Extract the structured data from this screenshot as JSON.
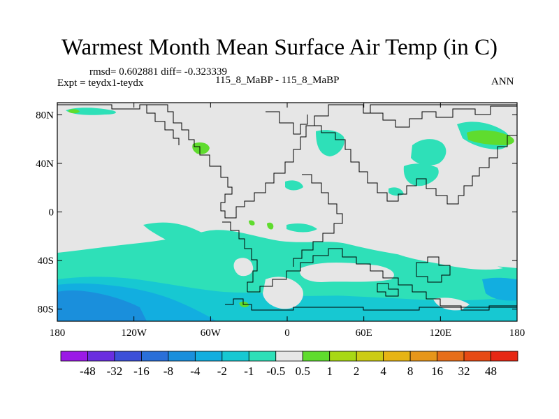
{
  "title": "Warmest Month Mean Surface Air Temp (in C)",
  "stats": "rmsd= 0.602881 diff= -0.323339",
  "expt": "Expt = teydx1-teydx",
  "subtitle": "115_8_MaBP - 115_8_MaBP",
  "period": "ANN",
  "chart_data": {
    "type": "heatmap",
    "map_projection": "cylindrical-equidistant",
    "lon_range": [
      -180,
      180
    ],
    "lat_range": [
      -90,
      90
    ],
    "x_ticks": [
      {
        "lon": -180,
        "label": "180"
      },
      {
        "lon": -120,
        "label": "120W"
      },
      {
        "lon": -60,
        "label": "60W"
      },
      {
        "lon": 0,
        "label": "0"
      },
      {
        "lon": 60,
        "label": "60E"
      },
      {
        "lon": 120,
        "label": "120E"
      },
      {
        "lon": 180,
        "label": "180"
      }
    ],
    "y_ticks": [
      {
        "lat": 80,
        "label": "80N"
      },
      {
        "lat": 40,
        "label": "40N"
      },
      {
        "lat": 0,
        "label": "0"
      },
      {
        "lat": -40,
        "label": "40S"
      },
      {
        "lat": -80,
        "label": "80S"
      }
    ],
    "colorbar": {
      "labels": [
        "-48",
        "-32",
        "-16",
        "-8",
        "-4",
        "-2",
        "-1",
        "-0.5",
        "0.5",
        "1",
        "2",
        "4",
        "8",
        "16",
        "32",
        "48"
      ],
      "colors": [
        "#9b19e6",
        "#6a2ee0",
        "#3c50d8",
        "#2a6fd8",
        "#1a8fdc",
        "#12aee0",
        "#17c8d2",
        "#2ee0b8",
        "#e6e6e6",
        "#5fdc2e",
        "#a8d814",
        "#cccc14",
        "#e6b414",
        "#e6961a",
        "#e66e1a",
        "#e64a14",
        "#e62814"
      ]
    },
    "background_color": "#e6e6e6"
  }
}
